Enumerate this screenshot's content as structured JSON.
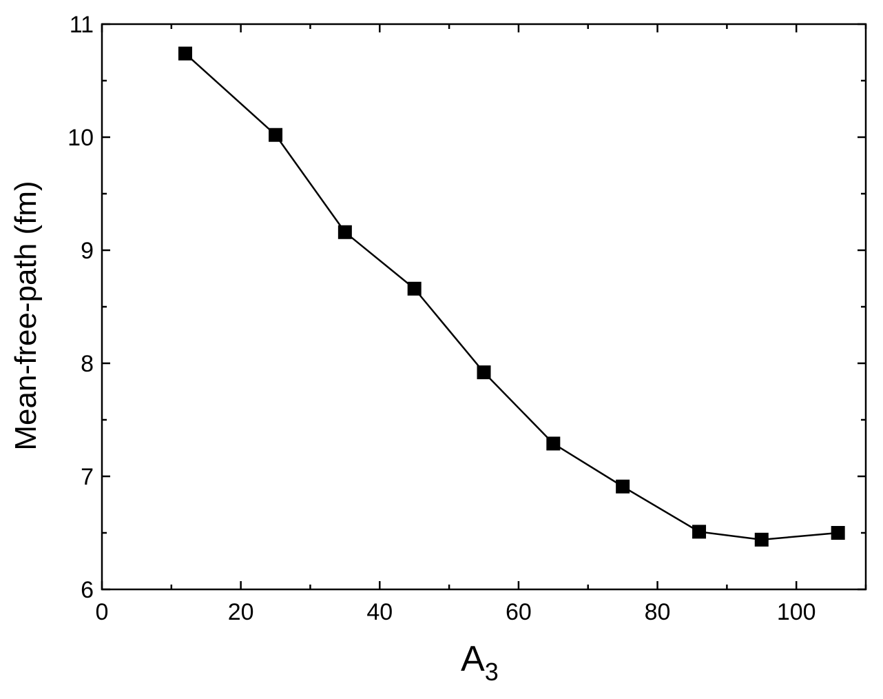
{
  "chart_data": {
    "type": "line",
    "title": "",
    "xlabel": "A",
    "xlabel_subscript": "3",
    "ylabel": "Mean-free-path (fm)",
    "xlim": [
      0,
      110
    ],
    "ylim": [
      6,
      11
    ],
    "x_ticks": [
      0,
      20,
      40,
      60,
      80,
      100
    ],
    "y_ticks": [
      6,
      7,
      8,
      9,
      10,
      11
    ],
    "x_minor_ticks": [
      10,
      30,
      50,
      70,
      90,
      110
    ],
    "y_minor_ticks": [
      6.5,
      7.5,
      8.5,
      9.5,
      10.5
    ],
    "grid": false,
    "legend": "none",
    "series": [
      {
        "marker": "square",
        "color": "#000000",
        "x": [
          12,
          25,
          35,
          45,
          55,
          65,
          75,
          86,
          95,
          106
        ],
        "y": [
          10.74,
          10.02,
          9.16,
          8.66,
          7.92,
          7.29,
          6.91,
          6.51,
          6.44,
          6.5
        ]
      }
    ]
  }
}
